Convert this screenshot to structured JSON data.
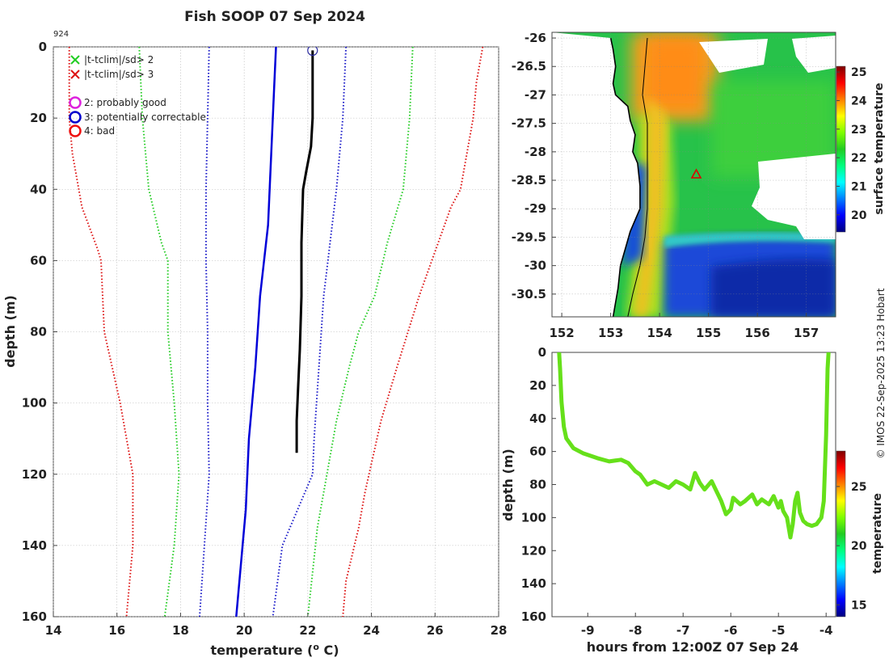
{
  "title": "Fish SOOP 07 Sep 2024",
  "credit": "© IMOS 22-Sep-2025 13:23 Hobart",
  "colors": {
    "profile": "#000000",
    "clim_mean": "#0000d8",
    "sd2": "#22cc22",
    "sd3": "#dd1111",
    "sd1": "#1818c8",
    "flag_good": "#dd22dd",
    "flag_correctable": "#0000cc",
    "flag_bad": "#ee1111",
    "flag_marker": "#2a2aa0",
    "coast": "#000000",
    "track": "#000000",
    "land": "#ffffff",
    "no_data": "#ffffff",
    "section_line": "#66e01a",
    "triangle": "#dd0000"
  },
  "colormap": [
    "#00007f",
    "#0000ff",
    "#007fff",
    "#00ffff",
    "#00ff7f",
    "#22cc22",
    "#7fff00",
    "#ffff00",
    "#ff7f00",
    "#ff0000",
    "#7f0000"
  ],
  "chart_data": [
    {
      "type": "line",
      "id": "profile",
      "annotation": "924",
      "xlabel": "temperature (o C)",
      "ylabel": "depth (m)",
      "xlim": [
        14,
        28
      ],
      "ylim": [
        0,
        160
      ],
      "y_reversed": true,
      "xticks": [
        14,
        16,
        18,
        20,
        22,
        24,
        26,
        28
      ],
      "yticks": [
        0,
        20,
        40,
        60,
        80,
        100,
        120,
        140,
        160
      ],
      "grid": true,
      "legend": [
        {
          "marker": "x",
          "color": "sd2",
          "label": "|t-tclim|/sd> 2"
        },
        {
          "marker": "x",
          "color": "sd3",
          "label": "|t-tclim|/sd> 3"
        },
        {
          "marker": "circle",
          "color": "flag_good",
          "label": "2: probably good"
        },
        {
          "marker": "circle",
          "color": "flag_correctable",
          "label": "3: potentially correctable"
        },
        {
          "marker": "circle",
          "color": "flag_bad",
          "label": "4: bad"
        }
      ],
      "series": [
        {
          "name": "climatology mean",
          "style": "solid",
          "color": "clim_mean",
          "points": [
            [
              21.0,
              0
            ],
            [
              20.95,
              10
            ],
            [
              20.85,
              30
            ],
            [
              20.75,
              50
            ],
            [
              20.5,
              70
            ],
            [
              20.35,
              90
            ],
            [
              20.15,
              110
            ],
            [
              20.05,
              130
            ],
            [
              19.9,
              145
            ],
            [
              19.75,
              160
            ]
          ]
        },
        {
          "name": "mean - 1 sd",
          "style": "dotted",
          "color": "sd1",
          "points": [
            [
              18.9,
              0
            ],
            [
              18.85,
              20
            ],
            [
              18.8,
              40
            ],
            [
              18.8,
              60
            ],
            [
              18.85,
              80
            ],
            [
              18.85,
              100
            ],
            [
              18.9,
              120
            ],
            [
              18.75,
              140
            ],
            [
              18.6,
              160
            ]
          ]
        },
        {
          "name": "mean + 1 sd",
          "style": "dotted",
          "color": "sd1",
          "points": [
            [
              23.2,
              0
            ],
            [
              23.1,
              20
            ],
            [
              22.9,
              40
            ],
            [
              22.7,
              55
            ],
            [
              22.5,
              70
            ],
            [
              22.35,
              90
            ],
            [
              22.2,
              110
            ],
            [
              22.15,
              120
            ],
            [
              21.2,
              140
            ],
            [
              20.9,
              160
            ]
          ]
        },
        {
          "name": "mean - 2 sd",
          "style": "dotted",
          "color": "sd2",
          "points": [
            [
              16.7,
              0
            ],
            [
              16.8,
              20
            ],
            [
              17.0,
              40
            ],
            [
              17.4,
              55
            ],
            [
              17.6,
              60
            ],
            [
              17.6,
              80
            ],
            [
              17.8,
              100
            ],
            [
              17.95,
              120
            ],
            [
              17.8,
              140
            ],
            [
              17.5,
              160
            ]
          ]
        },
        {
          "name": "mean + 2 sd",
          "style": "dotted",
          "color": "sd2",
          "points": [
            [
              25.3,
              0
            ],
            [
              25.2,
              20
            ],
            [
              25.0,
              40
            ],
            [
              24.5,
              55
            ],
            [
              24.1,
              70
            ],
            [
              23.6,
              80
            ],
            [
              23.3,
              90
            ],
            [
              22.9,
              105
            ],
            [
              22.6,
              120
            ],
            [
              22.3,
              135
            ],
            [
              22.0,
              160
            ]
          ]
        },
        {
          "name": "mean - 3 sd",
          "style": "dotted",
          "color": "sd3",
          "points": [
            [
              14.5,
              0
            ],
            [
              14.5,
              20
            ],
            [
              14.6,
              30
            ],
            [
              14.9,
              45
            ],
            [
              15.4,
              57
            ],
            [
              15.5,
              60
            ],
            [
              15.6,
              80
            ],
            [
              16.1,
              100
            ],
            [
              16.5,
              120
            ],
            [
              16.5,
              140
            ],
            [
              16.3,
              160
            ]
          ]
        },
        {
          "name": "mean + 3 sd",
          "style": "dotted",
          "color": "sd3",
          "points": [
            [
              27.5,
              0
            ],
            [
              27.3,
              10
            ],
            [
              27.2,
              20
            ],
            [
              26.8,
              40
            ],
            [
              26.5,
              45
            ],
            [
              25.9,
              60
            ],
            [
              25.5,
              70
            ],
            [
              24.8,
              90
            ],
            [
              24.3,
              105
            ],
            [
              23.8,
              125
            ],
            [
              23.6,
              135
            ],
            [
              23.2,
              150
            ],
            [
              23.1,
              160
            ]
          ]
        },
        {
          "name": "observed profile",
          "style": "solid",
          "color": "profile",
          "width": 3,
          "points": [
            [
              22.15,
              1
            ],
            [
              22.15,
              10
            ],
            [
              22.15,
              20
            ],
            [
              22.1,
              28
            ],
            [
              21.95,
              35
            ],
            [
              21.85,
              40
            ],
            [
              21.8,
              55
            ],
            [
              21.8,
              70
            ],
            [
              21.75,
              85
            ],
            [
              21.7,
              95
            ],
            [
              21.65,
              105
            ],
            [
              21.65,
              114
            ]
          ]
        }
      ],
      "flagged_points": [
        {
          "flag": 3,
          "x": 22.15,
          "y": 1
        }
      ]
    },
    {
      "type": "heatmap",
      "id": "sst-map",
      "xlim": [
        151.8,
        157.6
      ],
      "ylim": [
        -30.9,
        -25.9
      ],
      "xticks": [
        152,
        153,
        154,
        155,
        156,
        157
      ],
      "yticks": [
        -26,
        -26.5,
        -27,
        -27.5,
        -28,
        -28.5,
        -29,
        -29.5,
        -30,
        -30.5
      ],
      "xtick_labels": [
        "152",
        "153",
        "154",
        "155",
        "156",
        "157"
      ],
      "ytick_labels": [
        "-26",
        "-26.5",
        "-27",
        "-27.5",
        "-28",
        "-28.5",
        "-29",
        "-29.5",
        "-30",
        "-30.5"
      ],
      "colorbar": {
        "label": "surface temperature",
        "range": [
          19.4,
          25.2
        ],
        "ticks": [
          20,
          21,
          22,
          23,
          24,
          25
        ]
      },
      "profile_location": {
        "lon": 154.75,
        "lat": -28.4
      },
      "coastline": [
        [
          153.0,
          -26.0
        ],
        [
          153.05,
          -26.2
        ],
        [
          153.1,
          -26.5
        ],
        [
          153.05,
          -26.8
        ],
        [
          153.1,
          -27.0
        ],
        [
          153.35,
          -27.2
        ],
        [
          153.4,
          -27.45
        ],
        [
          153.5,
          -27.7
        ],
        [
          153.45,
          -28.0
        ],
        [
          153.55,
          -28.2
        ],
        [
          153.6,
          -28.6
        ],
        [
          153.6,
          -29.0
        ],
        [
          153.4,
          -29.4
        ],
        [
          153.3,
          -29.7
        ],
        [
          153.2,
          -30.0
        ],
        [
          153.15,
          -30.4
        ],
        [
          153.05,
          -30.9
        ]
      ],
      "ship_track": [
        [
          153.75,
          -26.0
        ],
        [
          153.7,
          -26.5
        ],
        [
          153.65,
          -27.0
        ],
        [
          153.75,
          -27.5
        ],
        [
          153.75,
          -28.0
        ],
        [
          153.75,
          -28.5
        ],
        [
          153.75,
          -29.0
        ],
        [
          153.7,
          -29.5
        ],
        [
          153.6,
          -30.0
        ],
        [
          153.45,
          -30.5
        ],
        [
          153.35,
          -30.9
        ]
      ]
    },
    {
      "type": "line",
      "id": "section",
      "xlabel": "hours from 12:00Z 07 Sep 24",
      "ylabel": "depth (m)",
      "xlim": [
        -9.75,
        -3.8
      ],
      "ylim": [
        0,
        160
      ],
      "y_reversed": true,
      "xticks": [
        -9,
        -8,
        -7,
        -6,
        -5,
        -4
      ],
      "xtick_labels": [
        "-9",
        "-8",
        "-7",
        "-6",
        "-5",
        "-4"
      ],
      "yticks": [
        0,
        20,
        40,
        60,
        80,
        100,
        120,
        140,
        160
      ],
      "colorbar": {
        "label": "temperature",
        "range": [
          14,
          28
        ],
        "ticks": [
          15,
          20,
          25
        ]
      },
      "series": [
        {
          "name": "maximum depth",
          "color": "section_line",
          "points": [
            [
              -9.6,
              0
            ],
            [
              -9.58,
              10
            ],
            [
              -9.55,
              30
            ],
            [
              -9.5,
              45
            ],
            [
              -9.45,
              52
            ],
            [
              -9.3,
              58
            ],
            [
              -9.1,
              61
            ],
            [
              -8.8,
              64
            ],
            [
              -8.55,
              66
            ],
            [
              -8.3,
              65
            ],
            [
              -8.15,
              67
            ],
            [
              -8.0,
              72
            ],
            [
              -7.9,
              74
            ],
            [
              -7.75,
              80
            ],
            [
              -7.6,
              78
            ],
            [
              -7.45,
              80
            ],
            [
              -7.3,
              82
            ],
            [
              -7.15,
              78
            ],
            [
              -7.0,
              80
            ],
            [
              -6.85,
              83
            ],
            [
              -6.75,
              73
            ],
            [
              -6.65,
              79
            ],
            [
              -6.55,
              83
            ],
            [
              -6.4,
              78
            ],
            [
              -6.3,
              84
            ],
            [
              -6.2,
              90
            ],
            [
              -6.1,
              98
            ],
            [
              -6.0,
              95
            ],
            [
              -5.95,
              88
            ],
            [
              -5.8,
              92
            ],
            [
              -5.7,
              90
            ],
            [
              -5.55,
              86
            ],
            [
              -5.45,
              92
            ],
            [
              -5.35,
              89
            ],
            [
              -5.2,
              92
            ],
            [
              -5.1,
              87
            ],
            [
              -5.0,
              94
            ],
            [
              -4.95,
              90
            ],
            [
              -4.9,
              96
            ],
            [
              -4.82,
              100
            ],
            [
              -4.75,
              112
            ],
            [
              -4.7,
              104
            ],
            [
              -4.65,
              90
            ],
            [
              -4.6,
              85
            ],
            [
              -4.55,
              97
            ],
            [
              -4.48,
              102
            ],
            [
              -4.4,
              104
            ],
            [
              -4.3,
              105
            ],
            [
              -4.2,
              104
            ],
            [
              -4.1,
              100
            ],
            [
              -4.05,
              90
            ],
            [
              -4.0,
              50
            ],
            [
              -3.97,
              10
            ],
            [
              -3.95,
              0
            ]
          ]
        }
      ]
    }
  ]
}
